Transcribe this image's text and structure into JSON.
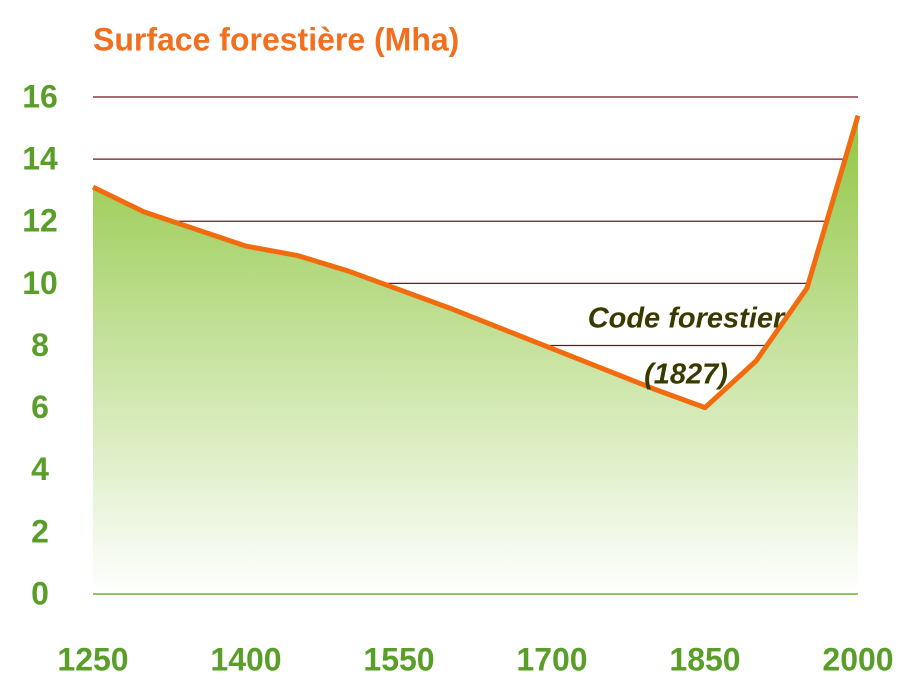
{
  "chart_data": {
    "type": "area",
    "title": "Surface forestière (Mha)",
    "x": [
      1250,
      1300,
      1400,
      1450,
      1500,
      1550,
      1600,
      1700,
      1800,
      1850,
      1900,
      1950,
      2000
    ],
    "series": [
      {
        "name": "Surface forestière",
        "color": "#f26b0f",
        "fill": "#8fc640",
        "values": [
          13.1,
          12.3,
          11.2,
          10.9,
          10.4,
          9.8,
          9.2,
          7.9,
          6.6,
          6.0,
          7.5,
          9.85,
          15.4
        ]
      }
    ],
    "xlim": [
      1250,
      2000
    ],
    "xticks": [
      1250,
      1400,
      1550,
      1700,
      1850,
      2000
    ],
    "ylim": [
      0,
      16
    ],
    "yticks": [
      0,
      2,
      4,
      6,
      8,
      10,
      12,
      14,
      16
    ],
    "grid": true,
    "grid_color": "#7a1020",
    "axis_color": "#7ab648",
    "tick_label_color": "#5a9e2a",
    "title_color": "#f07020",
    "annotations": [
      "Code forestier",
      "(1827)"
    ],
    "annotation_color": "#3a3a00"
  }
}
